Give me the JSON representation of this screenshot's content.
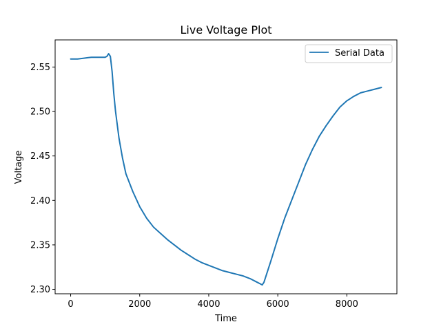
{
  "chart_data": {
    "type": "line",
    "title": "Live Voltage Plot",
    "xlabel": "Time",
    "ylabel": "Voltage",
    "xlim": [
      -450,
      9450
    ],
    "ylim": [
      2.295,
      2.5805
    ],
    "xticks": [
      0,
      2000,
      4000,
      6000,
      8000
    ],
    "xtick_labels": [
      "0",
      "2000",
      "4000",
      "6000",
      "8000"
    ],
    "yticks": [
      2.3,
      2.35,
      2.4,
      2.45,
      2.5,
      2.55
    ],
    "ytick_labels": [
      "2.30",
      "2.35",
      "2.40",
      "2.45",
      "2.50",
      "2.55"
    ],
    "grid": false,
    "legend": {
      "position": "top-right"
    },
    "series": [
      {
        "name": "Serial Data",
        "color": "#1f77b4",
        "x": [
          0,
          200,
          400,
          600,
          800,
          1000,
          1050,
          1100,
          1150,
          1200,
          1250,
          1300,
          1400,
          1500,
          1600,
          1800,
          2000,
          2200,
          2400,
          2600,
          2800,
          3000,
          3200,
          3400,
          3600,
          3800,
          4000,
          4200,
          4400,
          4600,
          4800,
          5000,
          5200,
          5400,
          5500,
          5550,
          5600,
          5700,
          5800,
          6000,
          6200,
          6400,
          6600,
          6800,
          7000,
          7200,
          7400,
          7600,
          7800,
          8000,
          8200,
          8400,
          8600,
          8800,
          9000
        ],
        "y": [
          2.559,
          2.559,
          2.56,
          2.561,
          2.561,
          2.561,
          2.562,
          2.565,
          2.562,
          2.545,
          2.52,
          2.5,
          2.47,
          2.448,
          2.43,
          2.41,
          2.393,
          2.38,
          2.37,
          2.363,
          2.356,
          2.35,
          2.344,
          2.339,
          2.334,
          2.33,
          2.327,
          2.324,
          2.321,
          2.319,
          2.317,
          2.315,
          2.312,
          2.308,
          2.306,
          2.305,
          2.308,
          2.32,
          2.332,
          2.357,
          2.38,
          2.4,
          2.42,
          2.44,
          2.457,
          2.472,
          2.484,
          2.495,
          2.505,
          2.512,
          2.517,
          2.521,
          2.523,
          2.525,
          2.527
        ]
      }
    ]
  }
}
